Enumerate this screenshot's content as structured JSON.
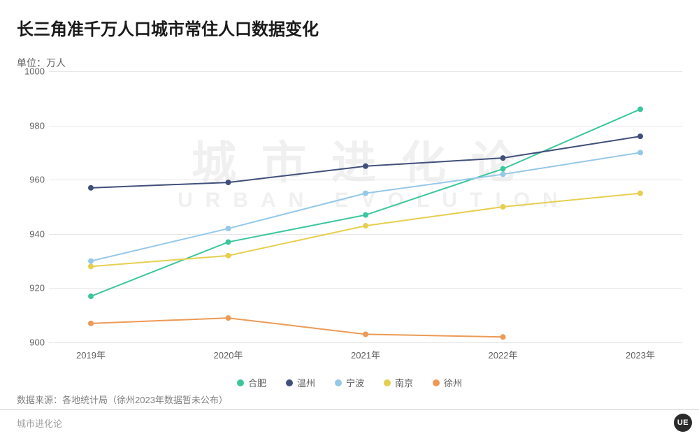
{
  "title": "长三角准千万人口城市常住人口数据变化",
  "unit_label": "单位：万人",
  "watermark_cn": "城市进化论",
  "watermark_en": "URBAN EVOLUTION",
  "source": "数据来源：各地统计局（徐州2023年数据暂未公布）",
  "footer": "城市进化论",
  "footer_logo": "UE",
  "chart": {
    "type": "line",
    "ylim": [
      900,
      1000
    ],
    "ytick_step": 20,
    "y_ticks": [
      900,
      920,
      940,
      960,
      980,
      1000
    ],
    "x_categories": [
      "2019年",
      "2020年",
      "2021年",
      "2022年",
      "2023年"
    ],
    "grid_color": "#e6e6e6",
    "background_color": "#ffffff",
    "axis_label_color": "#606060",
    "axis_label_fontsize": 13,
    "line_width": 2,
    "marker_radius": 4,
    "series": [
      {
        "name": "合肥",
        "color": "#3cc69d",
        "values": [
          917,
          937,
          947,
          964,
          986
        ]
      },
      {
        "name": "温州",
        "color": "#41507a",
        "values": [
          957,
          959,
          965,
          968,
          976
        ]
      },
      {
        "name": "宁波",
        "color": "#95c8e8",
        "values": [
          930,
          942,
          955,
          962,
          970
        ]
      },
      {
        "name": "南京",
        "color": "#e6cf4f",
        "values": [
          928,
          932,
          943,
          950,
          955
        ]
      },
      {
        "name": "徐州",
        "color": "#ec9a56",
        "values": [
          907,
          909,
          903,
          902,
          null
        ]
      }
    ],
    "legend_position": "bottom",
    "legend_fontsize": 13
  }
}
